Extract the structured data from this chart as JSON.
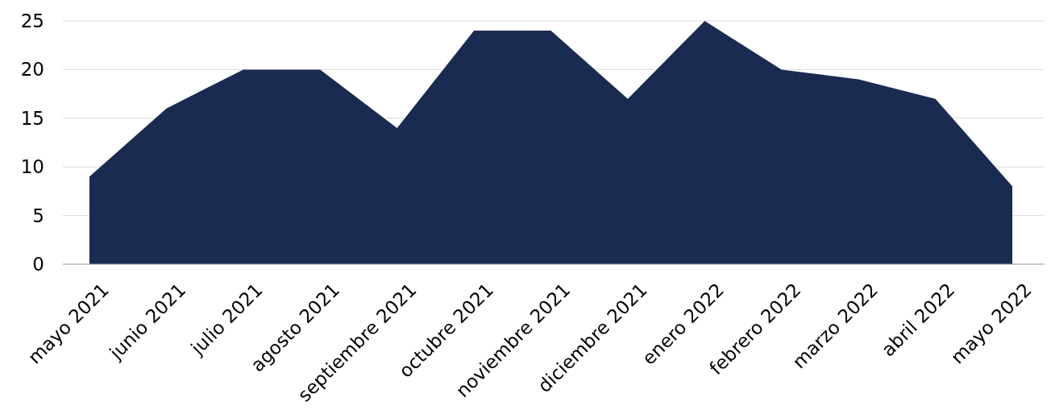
{
  "chart_data": {
    "type": "area",
    "categories": [
      "mayo 2021",
      "junio 2021",
      "julio 2021",
      "agosto 2021",
      "septiembre 2021",
      "octubre 2021",
      "noviembre 2021",
      "diciembre 2021",
      "enero 2022",
      "febrero 2022",
      "marzo 2022",
      "abril 2022",
      "mayo 2022"
    ],
    "series": [
      {
        "color": "#1a2b52",
        "values": [
          9,
          16,
          20,
          20,
          14,
          24,
          24,
          17,
          25,
          20,
          19,
          17,
          8
        ]
      }
    ],
    "ylim": [
      0,
      25
    ],
    "yticks": [
      0,
      5,
      10,
      15,
      20,
      25
    ],
    "grid": "y"
  }
}
